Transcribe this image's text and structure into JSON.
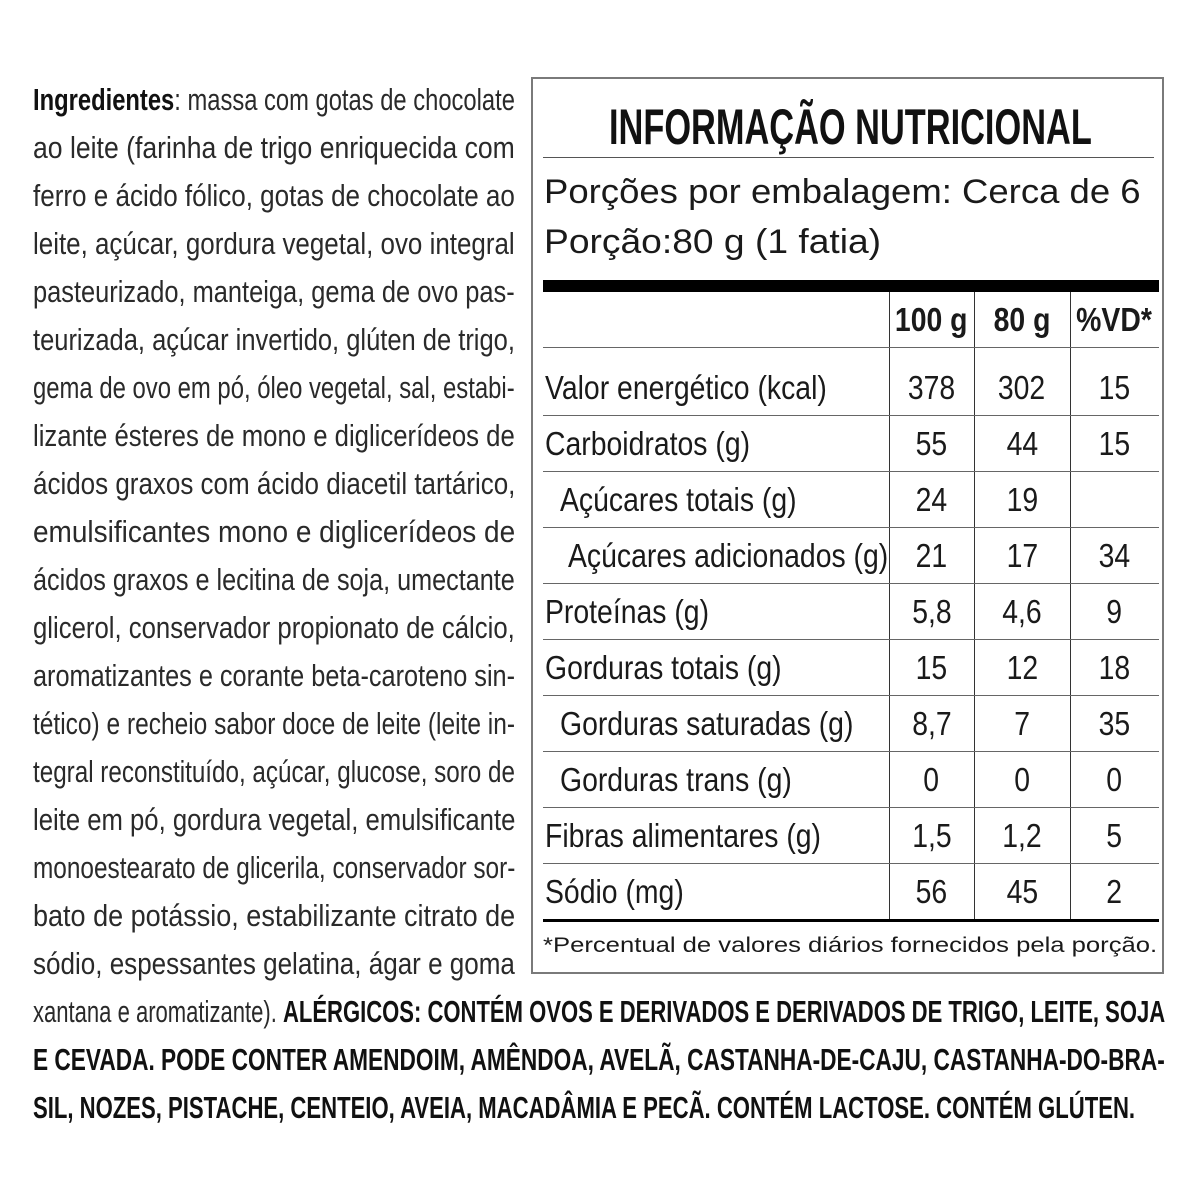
{
  "ingredients": {
    "label": "Ingredientes",
    "first_rest": ": massa com gotas de chocolate",
    "lines": [
      "ao leite (farinha de trigo enriquecida com",
      "ferro e ácido fólico, gotas de chocolate ao",
      "leite, açúcar, gordura vegetal, ovo integral",
      "pasteurizado, manteiga, gema de ovo pas-",
      "teurizada, açúcar invertido, glúten de trigo,",
      "gema de ovo em pó, óleo vegetal, sal, estabi-",
      "lizante ésteres de mono e diglicerídeos de",
      "ácidos graxos com ácido diacetil tartárico,",
      "emulsificantes mono e diglicerídeos de",
      "ácidos graxos e lecitina de soja, umectante",
      "glicerol, conservador propionato de cálcio,",
      "aromatizantes e corante beta-caroteno sin-",
      "tético) e recheio sabor doce de leite (leite in-",
      "tegral reconstituído, açúcar, glucose, soro de",
      "leite em pó, gordura vegetal, emulsificante",
      "monoestearato de glicerila, conservador sor-",
      "bato de potássio, estabilizante citrato de",
      "sódio, espessantes gelatina, ágar e goma"
    ],
    "closing": "xantana e aromatizante). "
  },
  "allergens": {
    "line1": "ALÉRGICOS: CONTÉM OVOS E DERIVADOS E DERIVADOS DE TRIGO, LEITE, SOJA",
    "line2": "E CEVADA. PODE CONTER AMENDOIM, AMÊNDOA, AVELÃ, CASTANHA-DE-CAJU, CASTANHA-DO-BRA-",
    "line3": "SIL, NOZES, PISTACHE, CENTEIO, AVEIA, MACADÂMIA E PECÃ. CONTÉM LACTOSE. CONTÉM GLÚTEN."
  },
  "nutrition": {
    "title": "INFORMAÇÃO NUTRICIONAL",
    "servings_per_package": "Porções por embalagem: Cerca de 6",
    "serving_size": "Porção:80 g (1 fatia)",
    "columns": [
      "100 g",
      "80 g",
      "%VD*"
    ],
    "rows": [
      {
        "label": "Valor energético (kcal)",
        "per100": "378",
        "per80": "302",
        "vd": "15"
      },
      {
        "label": "Carboidratos (g)",
        "per100": "55",
        "per80": "44",
        "vd": "15"
      },
      {
        "label": "Açúcares totais (g)",
        "per100": "24",
        "per80": "19",
        "vd": ""
      },
      {
        "label": "Açúcares adicionados (g)",
        "per100": "21",
        "per80": "17",
        "vd": "34"
      },
      {
        "label": "Proteínas (g)",
        "per100": "5,8",
        "per80": "4,6",
        "vd": "9"
      },
      {
        "label": "Gorduras totais (g)",
        "per100": "15",
        "per80": "12",
        "vd": "18"
      },
      {
        "label": "Gorduras saturadas (g)",
        "per100": "8,7",
        "per80": "7",
        "vd": "35"
      },
      {
        "label": "Gorduras trans (g)",
        "per100": "0",
        "per80": "0",
        "vd": "0"
      },
      {
        "label": "Fibras alimentares (g)",
        "per100": "1,5",
        "per80": "1,2",
        "vd": "5"
      },
      {
        "label": "Sódio (mg)",
        "per100": "56",
        "per80": "45",
        "vd": "2"
      }
    ],
    "footnote": "*Percentual de valores diários fornecidos pela porção."
  }
}
